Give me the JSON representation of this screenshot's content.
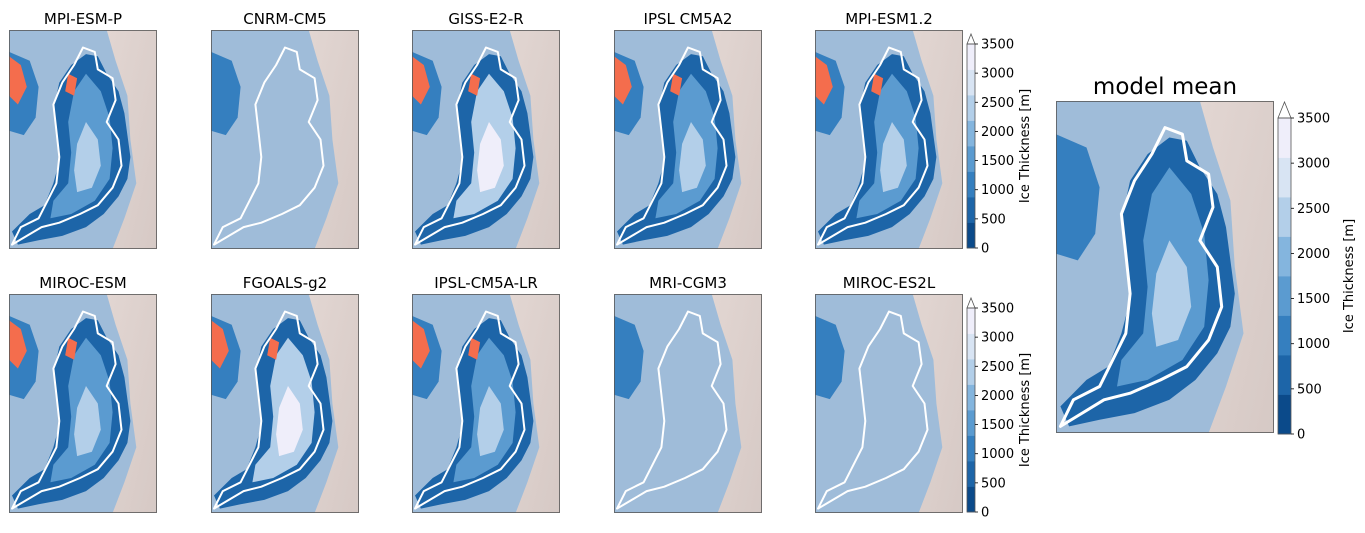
{
  "chart_data": {
    "type": "heatmap",
    "variable": "Ice Thickness",
    "colorbar": {
      "label": "Ice Thickness [m]",
      "ticks": [
        0,
        500,
        1000,
        1500,
        2000,
        2500,
        3000,
        3500
      ],
      "extend": "max"
    },
    "colors": {
      "sea": "#9fbcd9",
      "land": "#dccfcb",
      "levels": [
        "#0b4a8a",
        "#1d65a8",
        "#357fbf",
        "#5b9bd0",
        "#84b5de",
        "#b3cfe9",
        "#d8e4f3",
        "#efeefa"
      ],
      "outline": "#ffffff",
      "ice_free_mask": "#f46d4d"
    },
    "panels": [
      {
        "title": "MPI-ESM-P",
        "ice_extent": "full",
        "masked_areas": true
      },
      {
        "title": "CNRM-CM5",
        "ice_extent": "none",
        "masked_areas": false
      },
      {
        "title": "GISS-E2-R",
        "ice_extent": "full-thick",
        "masked_areas": true
      },
      {
        "title": "IPSL CM5A2",
        "ice_extent": "full",
        "masked_areas": true
      },
      {
        "title": "MPI-ESM1.2",
        "ice_extent": "full",
        "masked_areas": true
      },
      {
        "title": "MIROC-ESM",
        "ice_extent": "full",
        "masked_areas": true
      },
      {
        "title": "FGOALS-g2",
        "ice_extent": "full-thick",
        "masked_areas": true
      },
      {
        "title": "IPSL-CM5A-LR",
        "ice_extent": "full",
        "masked_areas": true
      },
      {
        "title": "MRI-CGM3",
        "ice_extent": "none",
        "masked_areas": false
      },
      {
        "title": "MIROC-ES2L",
        "ice_extent": "none",
        "masked_areas": false
      },
      {
        "title": "model mean",
        "ice_extent": "full",
        "masked_areas": false
      }
    ]
  }
}
